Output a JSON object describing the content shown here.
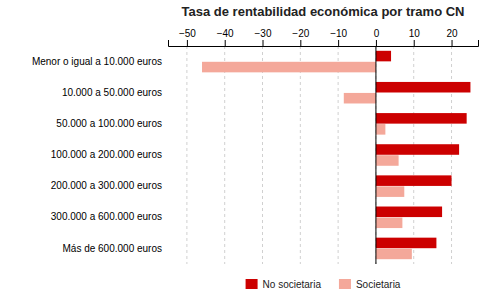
{
  "chart_data": {
    "type": "bar",
    "orientation": "horizontal",
    "title": "Tasa de rentabilidad económica por tramo CN",
    "categories": [
      "Menor o igual a 10.000 euros",
      "10.000 a 50.000 euros",
      "50.000 a 100.000 euros",
      "100.000 a 200.000 euros",
      "200.000 a 300.000 euros",
      "300.000 a 600.000 euros",
      "Más de 600.000 euros"
    ],
    "series": [
      {
        "name": "No societaria",
        "color": "#cc0000",
        "values": [
          4.0,
          25.0,
          24.0,
          22.0,
          20.0,
          17.5,
          16.0
        ]
      },
      {
        "name": "Societaria",
        "color": "#f4a89a",
        "values": [
          -46.0,
          -8.5,
          2.5,
          6.0,
          7.5,
          7.0,
          9.5
        ]
      }
    ],
    "xlim": [
      -55,
      27
    ],
    "xticks": [
      -50,
      -40,
      -30,
      -20,
      -10,
      0,
      10,
      20
    ],
    "grid": true,
    "legend": "bottom"
  }
}
